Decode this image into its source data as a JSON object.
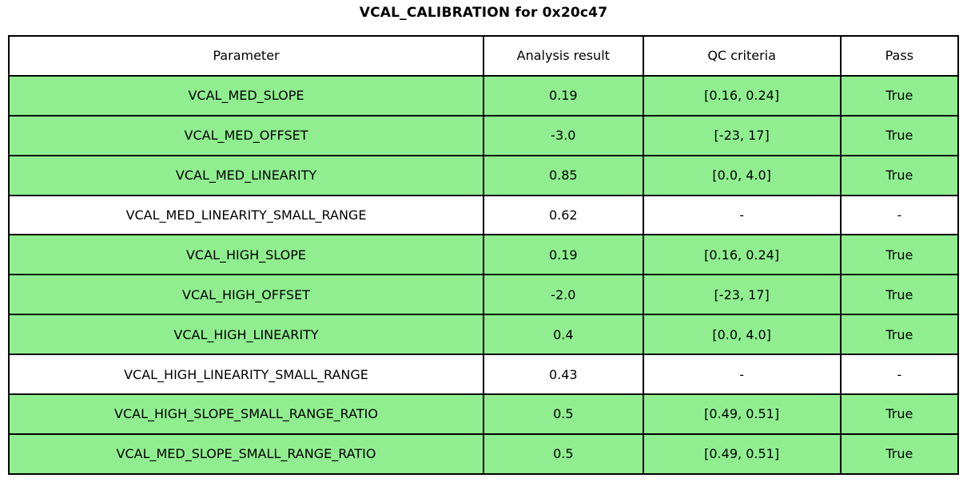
{
  "title": "VCAL_CALIBRATION for 0x20c47",
  "colors": {
    "pass_row_bg": "#90EE90",
    "neutral_row_bg": "#FFFFFF",
    "border": "#000000",
    "text": "#000000"
  },
  "chart_data": {
    "type": "table",
    "title": "VCAL_CALIBRATION for 0x20c47",
    "columns": [
      "Parameter",
      "Analysis result",
      "QC criteria",
      "Pass"
    ],
    "rows": [
      {
        "parameter": "VCAL_MED_SLOPE",
        "analysis_result": "0.19",
        "qc_criteria": "[0.16, 0.24]",
        "pass": "True",
        "highlight": true
      },
      {
        "parameter": "VCAL_MED_OFFSET",
        "analysis_result": "-3.0",
        "qc_criteria": "[-23, 17]",
        "pass": "True",
        "highlight": true
      },
      {
        "parameter": "VCAL_MED_LINEARITY",
        "analysis_result": "0.85",
        "qc_criteria": "[0.0, 4.0]",
        "pass": "True",
        "highlight": true
      },
      {
        "parameter": "VCAL_MED_LINEARITY_SMALL_RANGE",
        "analysis_result": "0.62",
        "qc_criteria": "-",
        "pass": "-",
        "highlight": false
      },
      {
        "parameter": "VCAL_HIGH_SLOPE",
        "analysis_result": "0.19",
        "qc_criteria": "[0.16, 0.24]",
        "pass": "True",
        "highlight": true
      },
      {
        "parameter": "VCAL_HIGH_OFFSET",
        "analysis_result": "-2.0",
        "qc_criteria": "[-23, 17]",
        "pass": "True",
        "highlight": true
      },
      {
        "parameter": "VCAL_HIGH_LINEARITY",
        "analysis_result": "0.4",
        "qc_criteria": "[0.0, 4.0]",
        "pass": "True",
        "highlight": true
      },
      {
        "parameter": "VCAL_HIGH_LINEARITY_SMALL_RANGE",
        "analysis_result": "0.43",
        "qc_criteria": "-",
        "pass": "-",
        "highlight": false
      },
      {
        "parameter": "VCAL_HIGH_SLOPE_SMALL_RANGE_RATIO",
        "analysis_result": "0.5",
        "qc_criteria": "[0.49, 0.51]",
        "pass": "True",
        "highlight": true
      },
      {
        "parameter": "VCAL_MED_SLOPE_SMALL_RANGE_RATIO",
        "analysis_result": "0.5",
        "qc_criteria": "[0.49, 0.51]",
        "pass": "True",
        "highlight": true
      }
    ]
  }
}
